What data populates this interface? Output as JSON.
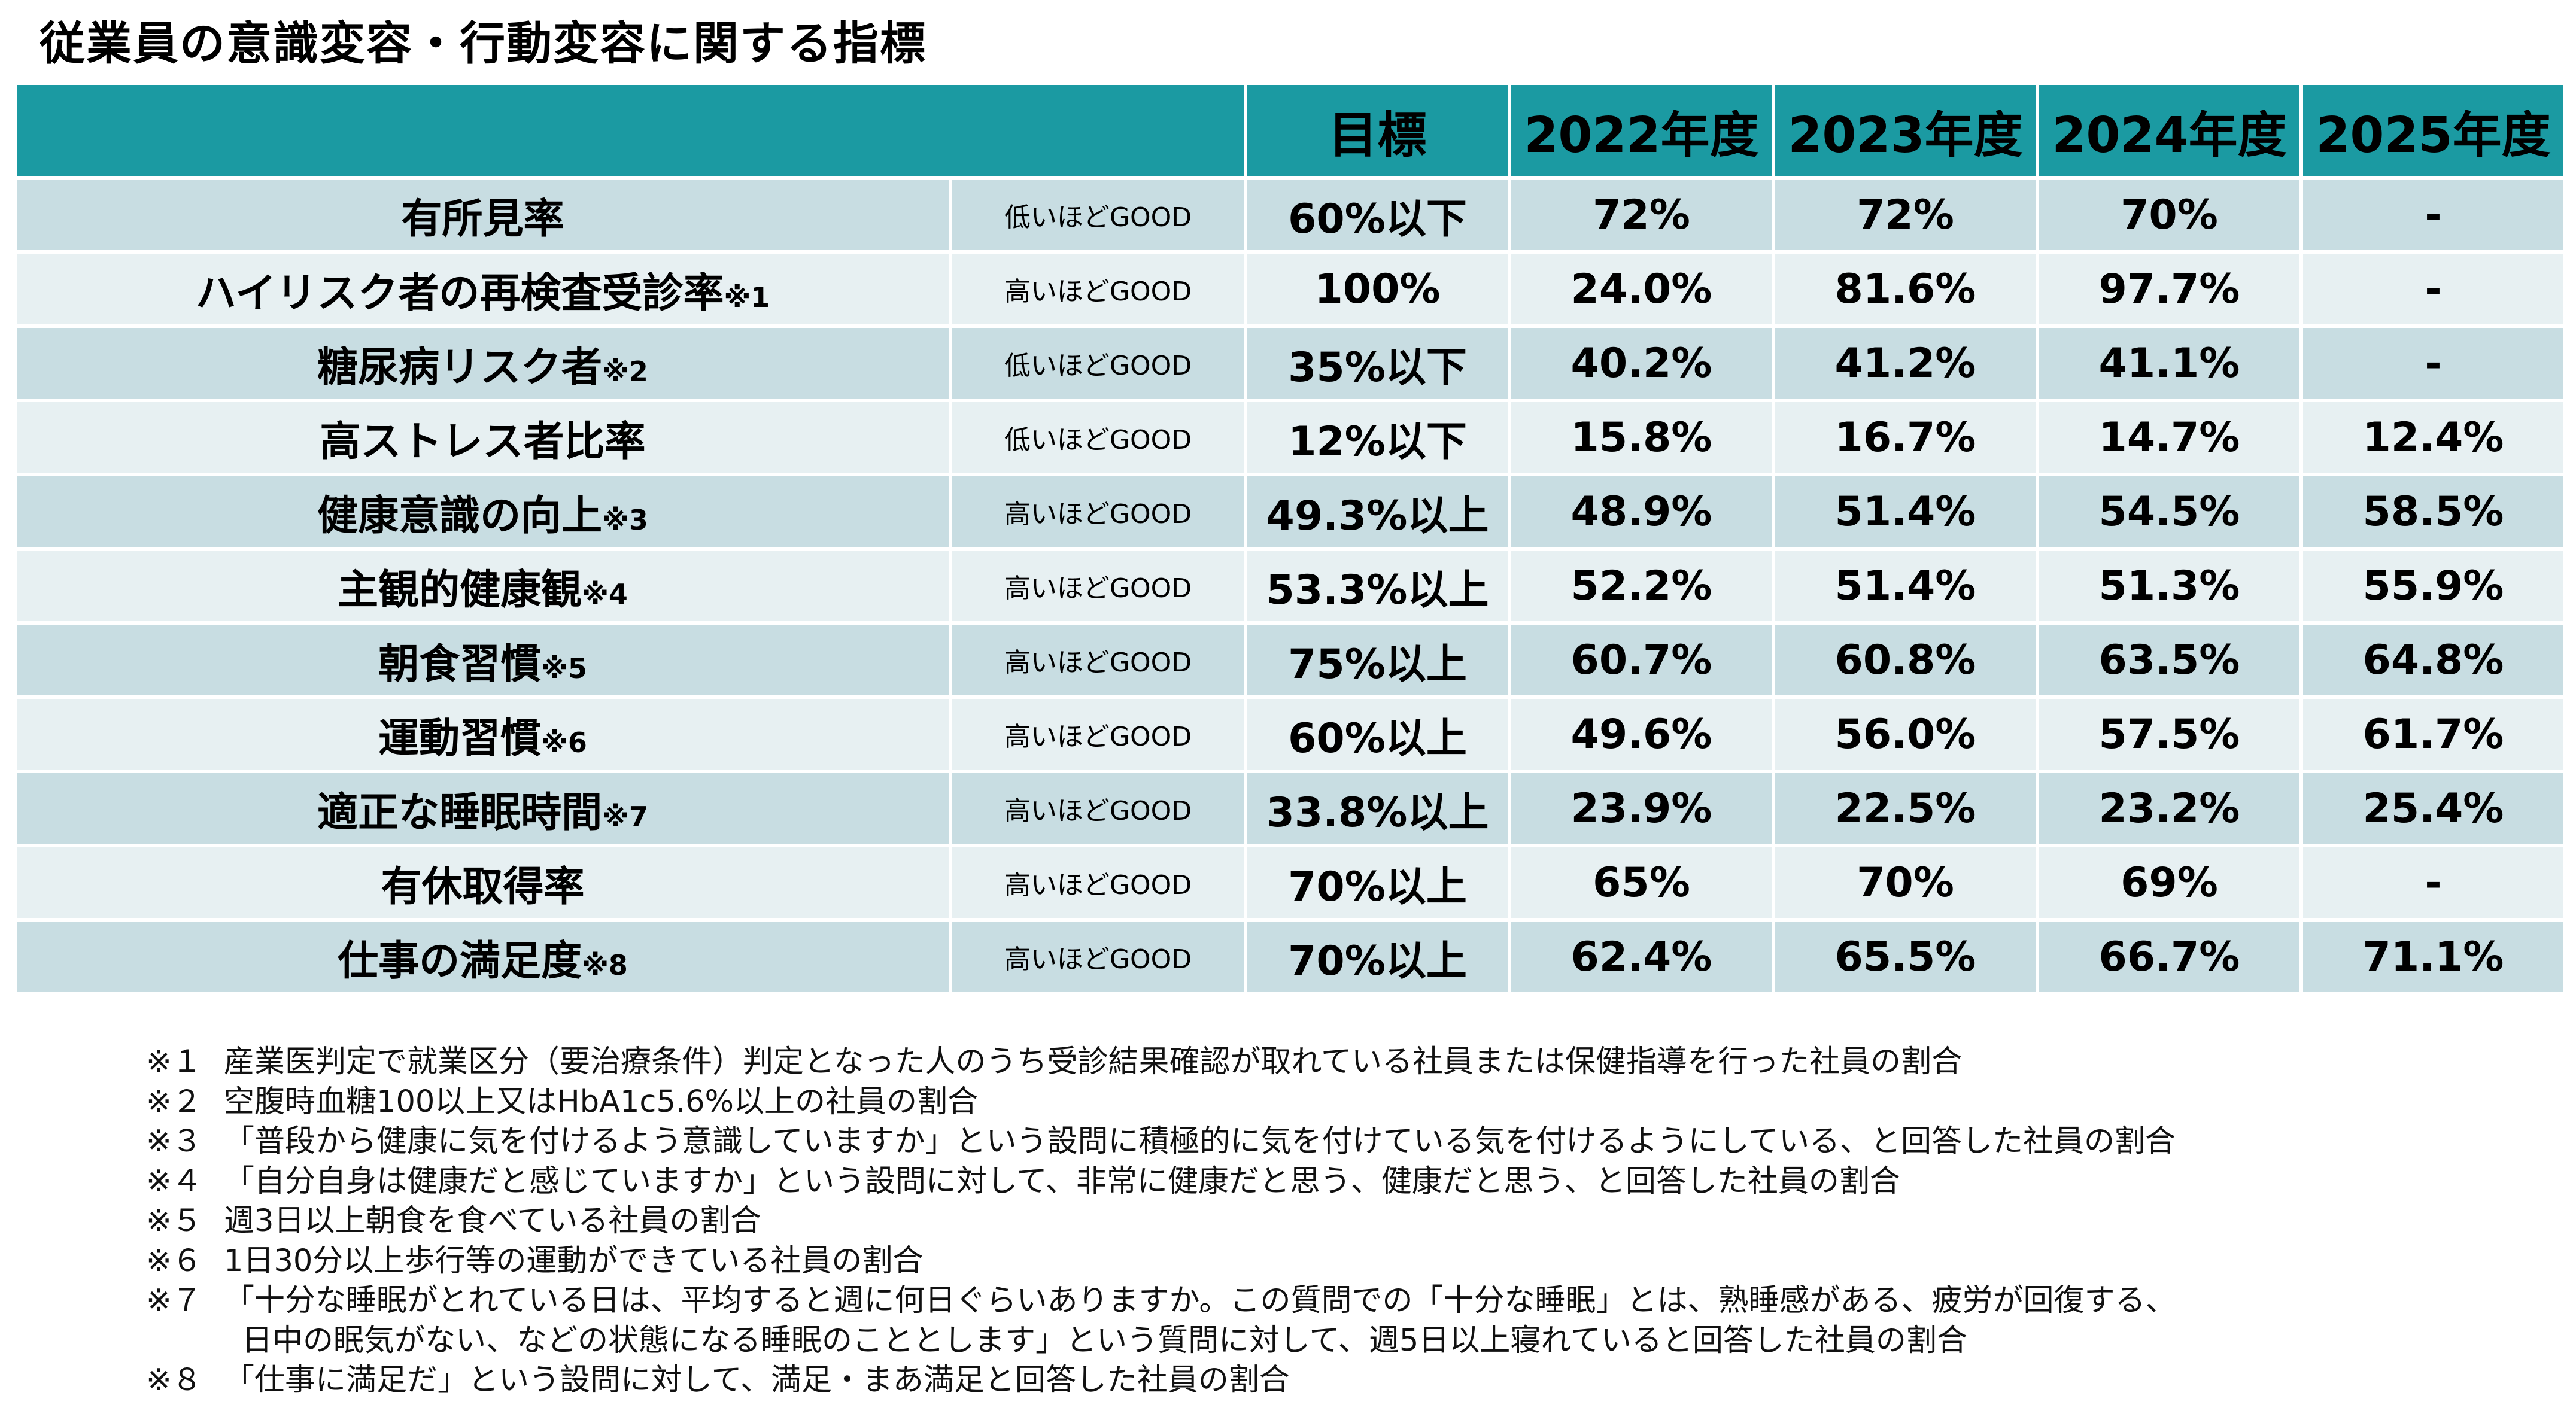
{
  "title": "従業員の意識変容・行動変容に関する指標",
  "table": {
    "headers": [
      "",
      "",
      "目標",
      "2022年度",
      "2023年度",
      "2024年度",
      "2025年度"
    ],
    "rows": [
      {
        "name": "有所見率",
        "mark": "",
        "note": "低いほどGOOD",
        "target": "60%以下",
        "y2022": "72%",
        "y2023": "72%",
        "y2024": "70%",
        "y2025": "-"
      },
      {
        "name": "ハイリスク者の再検査受診率",
        "mark": "※1",
        "note": "高いほどGOOD",
        "target": "100%",
        "y2022": "24.0%",
        "y2023": "81.6%",
        "y2024": "97.7%",
        "y2025": "-"
      },
      {
        "name": "糖尿病リスク者",
        "mark": "※2",
        "note": "低いほどGOOD",
        "target": "35%以下",
        "y2022": "40.2%",
        "y2023": "41.2%",
        "y2024": "41.1%",
        "y2025": "-"
      },
      {
        "name": "高ストレス者比率",
        "mark": "",
        "note": "低いほどGOOD",
        "target": "12%以下",
        "y2022": "15.8%",
        "y2023": "16.7%",
        "y2024": "14.7%",
        "y2025": "12.4%"
      },
      {
        "name": "健康意識の向上",
        "mark": "※3",
        "note": "高いほどGOOD",
        "target": "49.3%以上",
        "y2022": "48.9%",
        "y2023": "51.4%",
        "y2024": "54.5%",
        "y2025": "58.5%"
      },
      {
        "name": "主観的健康観",
        "mark": "※4",
        "note": "高いほどGOOD",
        "target": "53.3%以上",
        "y2022": "52.2%",
        "y2023": "51.4%",
        "y2024": "51.3%",
        "y2025": "55.9%"
      },
      {
        "name": "朝食習慣",
        "mark": "※5",
        "note": "高いほどGOOD",
        "target": "75%以上",
        "y2022": "60.7%",
        "y2023": "60.8%",
        "y2024": "63.5%",
        "y2025": "64.8%"
      },
      {
        "name": "運動習慣",
        "mark": "※6",
        "note": "高いほどGOOD",
        "target": "60%以上",
        "y2022": "49.6%",
        "y2023": "56.0%",
        "y2024": "57.5%",
        "y2025": "61.7%"
      },
      {
        "name": "適正な睡眠時間",
        "mark": "※7",
        "note": "高いほどGOOD",
        "target": "33.8%以上",
        "y2022": "23.9%",
        "y2023": "22.5%",
        "y2024": "23.2%",
        "y2025": "25.4%"
      },
      {
        "name": "有休取得率",
        "mark": "",
        "note": "高いほどGOOD",
        "target": "70%以上",
        "y2022": "65%",
        "y2023": "70%",
        "y2024": "69%",
        "y2025": "-"
      },
      {
        "name": "仕事の満足度",
        "mark": "※8",
        "note": "高いほどGOOD",
        "target": "70%以上",
        "y2022": "62.4%",
        "y2023": "65.5%",
        "y2024": "66.7%",
        "y2025": "71.1%"
      }
    ]
  },
  "footnotes": [
    {
      "mark": "※１",
      "lines": [
        "産業医判定で就業区分（要治療条件）判定となった人のうち受診結果確認が取れている社員または保健指導を行った社員の割合"
      ]
    },
    {
      "mark": "※２",
      "lines": [
        "空腹時血糖100以上又はHbA1c5.6%以上の社員の割合"
      ]
    },
    {
      "mark": "※３",
      "lines": [
        "「普段から健康に気を付けるよう意識していますか」という設問に積極的に気を付けている気を付けるようにしている、と回答した社員の割合"
      ]
    },
    {
      "mark": "※４",
      "lines": [
        "「自分自身は健康だと感じていますか」という設問に対して、非常に健康だと思う、健康だと思う、と回答した社員の割合"
      ]
    },
    {
      "mark": "※５",
      "lines": [
        "週3日以上朝食を食べている社員の割合"
      ]
    },
    {
      "mark": "※６",
      "lines": [
        "1日30分以上歩行等の運動ができている社員の割合"
      ]
    },
    {
      "mark": "※７",
      "lines": [
        "「十分な睡眠がとれている日は、平均すると週に何日ぐらいありますか。この質問での「十分な睡眠」とは、熟睡感がある、疲労が回復する、",
        "日中の眠気がない、などの状態になる睡眠のこととします」という質問に対して、週5日以上寝れていると回答した社員の割合"
      ]
    },
    {
      "mark": "※８",
      "lines": [
        "「仕事に満足だ」という設問に対して、満足・まあ満足と回答した社員の割合"
      ]
    }
  ]
}
